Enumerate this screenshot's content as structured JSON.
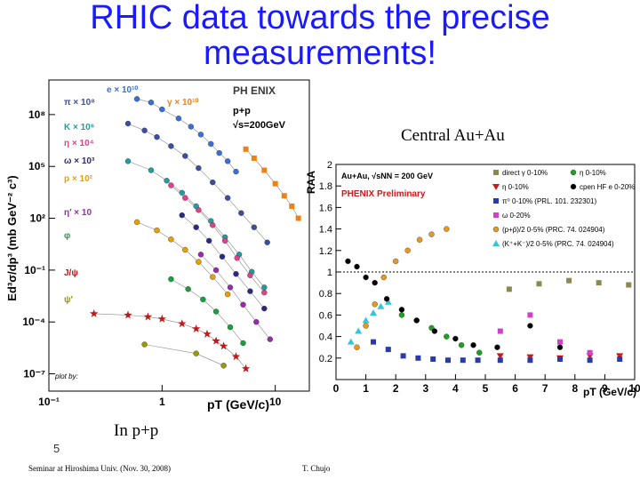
{
  "slide": {
    "title_line1": "RHIC data towards the precise",
    "title_line2": "measurements!",
    "caption_auau": "Central Au+Au",
    "caption_pp": "In p+p",
    "slide_number": "5",
    "footer_left": "Seminar at Hiroshima Univ. (Nov. 30, 2008)",
    "footer_right": "T. Chujo",
    "colors": {
      "title": "#1a1aff"
    }
  },
  "chart_data": [
    {
      "type": "scatter",
      "id": "pp",
      "log_x": true,
      "log_y": true,
      "xlim": [
        0.1,
        20
      ],
      "ylim": [
        1e-08,
        10000000000.0
      ],
      "xticks": [
        {
          "v": 0.1,
          "label": "10⁻¹"
        },
        {
          "v": 1,
          "label": "1"
        },
        {
          "v": 10,
          "label": "10"
        }
      ],
      "yticks": [
        {
          "v": 100000000.0,
          "label": "10⁸"
        },
        {
          "v": 100000.0,
          "label": "10⁵"
        },
        {
          "v": 100.0,
          "label": "10²"
        },
        {
          "v": 0.1,
          "label": "10⁻¹"
        },
        {
          "v": 0.0001,
          "label": "10⁻⁴"
        },
        {
          "v": 1e-07,
          "label": "10⁻⁷"
        }
      ],
      "xlabel": "pT (GeV/c)",
      "ylabel": "Ed³σ/dp³ (mb GeV⁻² c³)",
      "logo": "PH ENIX",
      "system_label": "p+p",
      "energy_label": "√s=200GeV",
      "credit": "plot by:",
      "series": [
        {
          "name": "e × 10¹⁰",
          "color": "#3a6fd8",
          "marker": "circle",
          "points": [
            [
              0.6,
              800000000.0
            ],
            [
              0.8,
              500000000.0
            ],
            [
              1.0,
              200000000.0
            ],
            [
              1.4,
              60000000.0
            ],
            [
              1.8,
              20000000.0
            ],
            [
              2.2,
              7000000.0
            ],
            [
              2.7,
              2000000.0
            ],
            [
              3.2,
              600000.0
            ],
            [
              3.8,
              200000.0
            ],
            [
              4.5,
              50000.0
            ]
          ]
        },
        {
          "name": "π × 10⁸",
          "color": "#3b4ea0",
          "marker": "circle",
          "points": [
            [
              0.5,
              30000000.0
            ],
            [
              0.7,
              12000000.0
            ],
            [
              0.9,
              5000000.0
            ],
            [
              1.2,
              1500000.0
            ],
            [
              1.6,
              400000.0
            ],
            [
              2.1,
              80000.0
            ],
            [
              2.8,
              12000.0
            ],
            [
              3.8,
              1500.0
            ],
            [
              5,
              200
            ],
            [
              6.5,
              30
            ],
            [
              8.5,
              4
            ]
          ]
        },
        {
          "name": "K × 10⁶",
          "color": "#19a0a6",
          "marker": "circle",
          "points": [
            [
              0.5,
              200000.0
            ],
            [
              0.8,
              60000.0
            ],
            [
              1.1,
              15000.0
            ],
            [
              1.5,
              3000.0
            ],
            [
              2,
              500
            ],
            [
              2.7,
              70
            ],
            [
              3.6,
              8
            ],
            [
              4.8,
              0.8
            ],
            [
              6.2,
              0.08
            ],
            [
              8,
              0.01
            ]
          ]
        },
        {
          "name": "η × 10⁴",
          "color": "#e0408a",
          "marker": "circle",
          "points": [
            [
              1.2,
              8000.0
            ],
            [
              1.6,
              1500.0
            ],
            [
              2.1,
              300
            ],
            [
              2.8,
              40
            ],
            [
              3.6,
              5
            ],
            [
              4.6,
              0.5
            ],
            [
              6,
              0.05
            ],
            [
              8,
              0.005
            ]
          ]
        },
        {
          "name": "ω × 10³",
          "color": "#2a2a80",
          "marker": "circle",
          "points": [
            [
              1.5,
              150
            ],
            [
              2,
              30
            ],
            [
              2.6,
              5
            ],
            [
              3.4,
              0.6
            ],
            [
              4.5,
              0.06
            ],
            [
              6,
              0.006
            ],
            [
              8,
              0.0006
            ]
          ]
        },
        {
          "name": "p × 10²",
          "color": "#e8a000",
          "marker": "circle",
          "points": [
            [
              0.6,
              60
            ],
            [
              0.9,
              20
            ],
            [
              1.2,
              6
            ],
            [
              1.6,
              1.5
            ],
            [
              2.1,
              0.3
            ],
            [
              2.8,
              0.04
            ],
            [
              3.8,
              0.004
            ]
          ]
        },
        {
          "name": "η′ × 10",
          "color": "#9a2aaa",
          "marker": "circle",
          "points": [
            [
              2.2,
              0.8
            ],
            [
              3,
              0.1
            ],
            [
              4,
              0.01
            ],
            [
              5.2,
              0.001
            ],
            [
              6.8,
              0.0001
            ],
            [
              9,
              1e-05
            ]
          ]
        },
        {
          "name": "φ",
          "color": "#18a040",
          "marker": "circle",
          "points": [
            [
              1.2,
              0.03
            ],
            [
              1.7,
              0.008
            ],
            [
              2.3,
              0.002
            ],
            [
              3,
              0.0004
            ],
            [
              4,
              5e-05
            ],
            [
              5.2,
              6e-06
            ]
          ]
        },
        {
          "name": "J/ψ",
          "color": "#c01818",
          "marker": "star",
          "points": [
            [
              0.25,
              0.0003
            ],
            [
              0.5,
              0.00025
            ],
            [
              0.75,
              0.0002
            ],
            [
              1,
              0.00015
            ],
            [
              1.5,
              8e-05
            ],
            [
              2,
              4e-05
            ],
            [
              2.5,
              2e-05
            ],
            [
              3,
              8e-06
            ],
            [
              3.5,
              4e-06
            ],
            [
              4.5,
              1e-06
            ],
            [
              5.5,
              2e-07
            ]
          ]
        },
        {
          "name": "ψ′",
          "color": "#9a9a00",
          "marker": "circle",
          "points": [
            [
              0.7,
              5e-06
            ],
            [
              2,
              1.5e-06
            ],
            [
              3.5,
              3e-07
            ]
          ]
        },
        {
          "name": "γ × 10¹⁰",
          "color": "#f08010",
          "marker": "square",
          "points": [
            [
              5.5,
              1000000.0
            ],
            [
              6.5,
              300000.0
            ],
            [
              8,
              60000.0
            ],
            [
              10,
              10000.0
            ],
            [
              12,
              2000.0
            ],
            [
              14,
              500.0
            ],
            [
              16,
              100.0
            ]
          ]
        }
      ]
    },
    {
      "type": "scatter",
      "id": "raa",
      "xlim": [
        0,
        10
      ],
      "ylim": [
        0,
        2
      ],
      "xticks": [
        0,
        1,
        2,
        3,
        4,
        5,
        6,
        7,
        8,
        9,
        10
      ],
      "yticks": [
        0.2,
        0.4,
        0.6,
        0.8,
        1,
        1.2,
        1.4,
        1.6,
        1.8,
        2
      ],
      "xlabel": "pT (GeV/c)",
      "ylabel": "RAA",
      "header": "Au+Au, √sNN = 200 GeV",
      "preliminary": "PHENIX Preliminary",
      "reference_line": 1,
      "series": [
        {
          "name": "direct γ 0-10%",
          "color": "#8a8a50",
          "marker": "square",
          "points": [
            [
              5.8,
              0.84
            ],
            [
              6.8,
              0.89
            ],
            [
              7.8,
              0.92
            ],
            [
              8.8,
              0.9
            ],
            [
              9.8,
              0.88
            ]
          ]
        },
        {
          "name": "η 0-10%",
          "color": "#d01818",
          "marker": "triangle-down",
          "points": [
            [
              5.5,
              0.22
            ],
            [
              6.5,
              0.21
            ],
            [
              7.5,
              0.2
            ],
            [
              8.5,
              0.22
            ],
            [
              9.5,
              0.22
            ]
          ]
        },
        {
          "name": "π⁰ 0-10% (PRL. 101. 232301)",
          "color": "#2a3aa8",
          "marker": "square",
          "points": [
            [
              1.25,
              0.35
            ],
            [
              1.75,
              0.28
            ],
            [
              2.25,
              0.22
            ],
            [
              2.75,
              0.2
            ],
            [
              3.25,
              0.19
            ],
            [
              3.75,
              0.18
            ],
            [
              4.25,
              0.18
            ],
            [
              4.75,
              0.18
            ],
            [
              5.5,
              0.18
            ],
            [
              6.5,
              0.18
            ],
            [
              7.5,
              0.19
            ],
            [
              8.5,
              0.18
            ],
            [
              9.5,
              0.19
            ]
          ]
        },
        {
          "name": "ω 0-20%",
          "color": "#d040c8",
          "marker": "square",
          "points": [
            [
              5.5,
              0.45
            ],
            [
              6.5,
              0.6
            ],
            [
              7.5,
              0.35
            ],
            [
              8.5,
              0.25
            ]
          ]
        },
        {
          "name": "(p+p̄)/2 0-5% (PRC. 74. 024904)",
          "color": "#e89820",
          "marker": "circle",
          "points": [
            [
              0.7,
              0.3
            ],
            [
              1.0,
              0.5
            ],
            [
              1.3,
              0.7
            ],
            [
              1.6,
              0.95
            ],
            [
              2.0,
              1.1
            ],
            [
              2.4,
              1.2
            ],
            [
              2.8,
              1.3
            ],
            [
              3.2,
              1.35
            ],
            [
              3.7,
              1.4
            ]
          ]
        },
        {
          "name": "(K⁺+K⁻)/2 0-5% (PRC. 74. 024904)",
          "color": "#30c8d8",
          "marker": "triangle",
          "points": [
            [
              0.5,
              0.35
            ],
            [
              0.75,
              0.45
            ],
            [
              1.0,
              0.55
            ],
            [
              1.25,
              0.62
            ],
            [
              1.5,
              0.68
            ],
            [
              1.75,
              0.72
            ]
          ]
        },
        {
          "name": "η 0-10%",
          "color": "#20a020",
          "marker": "circle",
          "points": [
            [
              2.2,
              0.6
            ],
            [
              2.7,
              0.55
            ],
            [
              3.2,
              0.48
            ],
            [
              3.7,
              0.4
            ],
            [
              4.2,
              0.32
            ],
            [
              4.8,
              0.25
            ]
          ]
        },
        {
          "name": "cpen HF e 0-20%",
          "color": "#000000",
          "marker": "circle",
          "points": [
            [
              0.4,
              1.1
            ],
            [
              0.7,
              1.05
            ],
            [
              1.0,
              0.95
            ],
            [
              1.3,
              0.9
            ],
            [
              1.7,
              0.75
            ],
            [
              2.2,
              0.65
            ],
            [
              2.7,
              0.55
            ],
            [
              3.3,
              0.45
            ],
            [
              4.0,
              0.38
            ],
            [
              4.6,
              0.32
            ],
            [
              5.4,
              0.3
            ],
            [
              6.5,
              0.5
            ],
            [
              7.5,
              0.3
            ]
          ]
        }
      ]
    }
  ]
}
